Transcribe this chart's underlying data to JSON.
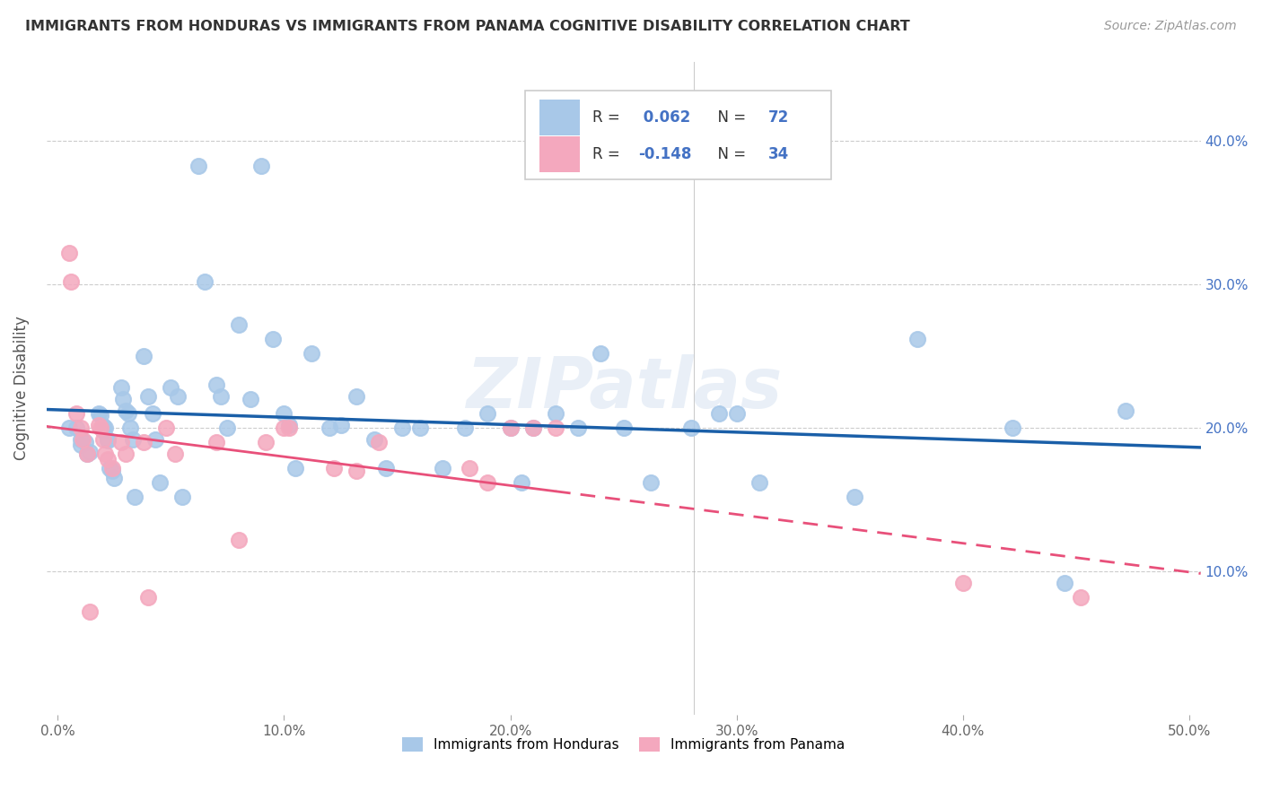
{
  "title": "IMMIGRANTS FROM HONDURAS VS IMMIGRANTS FROM PANAMA COGNITIVE DISABILITY CORRELATION CHART",
  "source": "Source: ZipAtlas.com",
  "ylabel": "Cognitive Disability",
  "xlim": [
    -0.005,
    0.505
  ],
  "ylim": [
    0.0,
    0.455
  ],
  "xticks": [
    0.0,
    0.1,
    0.2,
    0.3,
    0.4,
    0.5
  ],
  "yticks": [
    0.1,
    0.2,
    0.3,
    0.4
  ],
  "ytick_labels": [
    "10.0%",
    "20.0%",
    "30.0%",
    "40.0%"
  ],
  "xtick_labels": [
    "0.0%",
    "10.0%",
    "20.0%",
    "30.0%",
    "40.0%",
    "50.0%"
  ],
  "R_honduras": 0.062,
  "N_honduras": 72,
  "R_panama": -0.148,
  "N_panama": 34,
  "color_honduras": "#a8c8e8",
  "color_panama": "#f4a8be",
  "line_color_honduras": "#1a5fa8",
  "line_color_panama": "#e8507a",
  "watermark": "ZIPatlas",
  "honduras_x": [
    0.005,
    0.008,
    0.01,
    0.01,
    0.012,
    0.013,
    0.014,
    0.018,
    0.019,
    0.02,
    0.02,
    0.021,
    0.022,
    0.022,
    0.023,
    0.024,
    0.025,
    0.028,
    0.029,
    0.03,
    0.031,
    0.032,
    0.033,
    0.034,
    0.038,
    0.04,
    0.042,
    0.043,
    0.045,
    0.05,
    0.053,
    0.055,
    0.062,
    0.065,
    0.07,
    0.072,
    0.075,
    0.08,
    0.085,
    0.09,
    0.095,
    0.1,
    0.102,
    0.105,
    0.112,
    0.12,
    0.125,
    0.132,
    0.14,
    0.145,
    0.152,
    0.16,
    0.17,
    0.18,
    0.19,
    0.2,
    0.205,
    0.21,
    0.22,
    0.23,
    0.24,
    0.25,
    0.262,
    0.28,
    0.292,
    0.3,
    0.31,
    0.352,
    0.38,
    0.422,
    0.445,
    0.472
  ],
  "honduras_y": [
    0.2,
    0.2,
    0.192,
    0.188,
    0.19,
    0.182,
    0.183,
    0.21,
    0.209,
    0.201,
    0.198,
    0.2,
    0.192,
    0.191,
    0.172,
    0.17,
    0.165,
    0.228,
    0.22,
    0.212,
    0.21,
    0.2,
    0.192,
    0.152,
    0.25,
    0.222,
    0.21,
    0.192,
    0.162,
    0.228,
    0.222,
    0.152,
    0.382,
    0.302,
    0.23,
    0.222,
    0.2,
    0.272,
    0.22,
    0.382,
    0.262,
    0.21,
    0.202,
    0.172,
    0.252,
    0.2,
    0.202,
    0.222,
    0.192,
    0.172,
    0.2,
    0.2,
    0.172,
    0.2,
    0.21,
    0.2,
    0.162,
    0.2,
    0.21,
    0.2,
    0.252,
    0.2,
    0.162,
    0.2,
    0.21,
    0.21,
    0.162,
    0.152,
    0.262,
    0.2,
    0.092,
    0.212
  ],
  "panama_x": [
    0.005,
    0.006,
    0.008,
    0.01,
    0.011,
    0.013,
    0.014,
    0.018,
    0.019,
    0.02,
    0.021,
    0.022,
    0.024,
    0.028,
    0.03,
    0.038,
    0.04,
    0.048,
    0.052,
    0.07,
    0.08,
    0.092,
    0.1,
    0.102,
    0.122,
    0.132,
    0.142,
    0.182,
    0.19,
    0.2,
    0.21,
    0.22,
    0.4,
    0.452
  ],
  "panama_y": [
    0.322,
    0.302,
    0.21,
    0.2,
    0.192,
    0.182,
    0.072,
    0.202,
    0.2,
    0.192,
    0.182,
    0.178,
    0.172,
    0.19,
    0.182,
    0.19,
    0.082,
    0.2,
    0.182,
    0.19,
    0.122,
    0.19,
    0.2,
    0.2,
    0.172,
    0.17,
    0.19,
    0.172,
    0.162,
    0.2,
    0.2,
    0.2,
    0.092,
    0.082
  ]
}
